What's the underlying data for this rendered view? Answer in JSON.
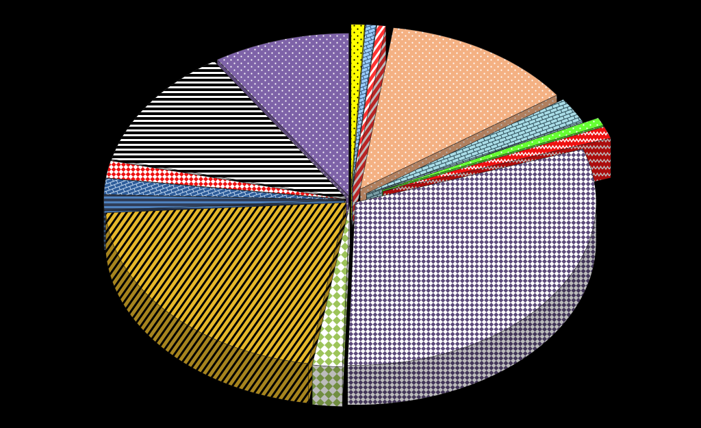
{
  "chart_data": {
    "type": "pie",
    "style": "3d-exploded",
    "background": "#000000",
    "title": "",
    "labels_shown": false,
    "legend": "none",
    "start_angle_deg": -90,
    "slices": [
      {
        "value": 0.9,
        "color": "#ffff00",
        "pattern": "dots",
        "pattern_color": "#000000",
        "explode": 0.16
      },
      {
        "value": 0.7,
        "color": "#99ccff",
        "pattern": "brick",
        "pattern_color": "#335577",
        "explode": 0.16
      },
      {
        "value": 0.6,
        "color": "#ff3333",
        "pattern": "diag",
        "pattern_color": "#ffffff",
        "explode": 0.16
      },
      {
        "value": 13.0,
        "color": "#f4b183",
        "pattern": "dots",
        "pattern_color": "#ffffff",
        "explode": 0.16
      },
      {
        "value": 2.5,
        "color": "#a9dce6",
        "pattern": "brick",
        "pattern_color": "#2a4a55",
        "explode": 0.16
      },
      {
        "value": 0.8,
        "color": "#66ff33",
        "pattern": "dots",
        "pattern_color": "#ffffff",
        "explode": 0.3
      },
      {
        "value": 1.2,
        "color": "#ee1111",
        "pattern": "zigzag",
        "pattern_color": "#ffffff",
        "explode": 0.3
      },
      {
        "value": 30.8,
        "color": "#5c4a7a",
        "pattern": "checker",
        "pattern_color": "#ffffff",
        "explode": 0.05
      },
      {
        "value": 2.0,
        "color": "#9dc45a",
        "pattern": "diamond",
        "pattern_color": "#ffffff",
        "explode": 0.05
      },
      {
        "value": 21.5,
        "color": "#e6b82a",
        "pattern": "diag",
        "pattern_color": "#000000",
        "explode": 0.05
      },
      {
        "value": 1.5,
        "color": "#2f3e5a",
        "pattern": "hlines",
        "pattern_color": "#4f81bd",
        "explode": 0.05
      },
      {
        "value": 1.6,
        "color": "#2e5d9a",
        "pattern": "brick",
        "pattern_color": "#c0d6ee",
        "explode": 0.05
      },
      {
        "value": 1.7,
        "color": "#ee1111",
        "pattern": "checker",
        "pattern_color": "#ffffff",
        "explode": 0.05
      },
      {
        "value": 12.0,
        "color": "#000000",
        "pattern": "hlines",
        "pattern_color": "#ffffff",
        "explode": 0.05
      },
      {
        "value": 9.2,
        "color": "#7e63a8",
        "pattern": "dots",
        "pattern_color": "#ffffff",
        "explode": 0.05
      }
    ]
  }
}
